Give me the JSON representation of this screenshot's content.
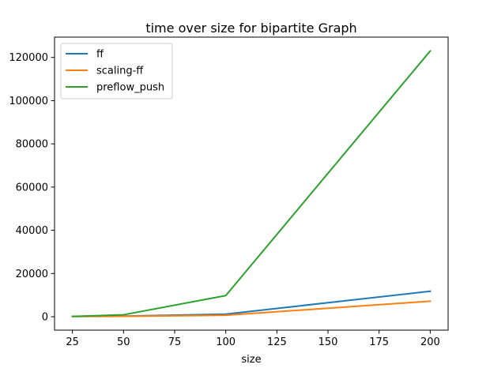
{
  "chart_data": {
    "type": "line",
    "title": "time over size for bipartite Graph",
    "xlabel": "size",
    "ylabel": "",
    "x": [
      25,
      50,
      100,
      200
    ],
    "xticks": [
      25,
      50,
      75,
      100,
      125,
      150,
      175,
      200
    ],
    "yticks": [
      0,
      20000,
      40000,
      60000,
      80000,
      100000,
      120000
    ],
    "xlim": [
      16.25,
      208.75
    ],
    "ylim": [
      -6200,
      129400
    ],
    "grid": false,
    "legend_position": "top-left",
    "series": [
      {
        "name": "ff",
        "color": "#1f77b4",
        "values": [
          150,
          300,
          1200,
          11800
        ]
      },
      {
        "name": "scaling-ff",
        "color": "#ff7f0e",
        "values": [
          100,
          200,
          700,
          7200
        ]
      },
      {
        "name": "preflow_push",
        "color": "#2ca02c",
        "values": [
          150,
          900,
          9800,
          123000
        ]
      }
    ]
  }
}
